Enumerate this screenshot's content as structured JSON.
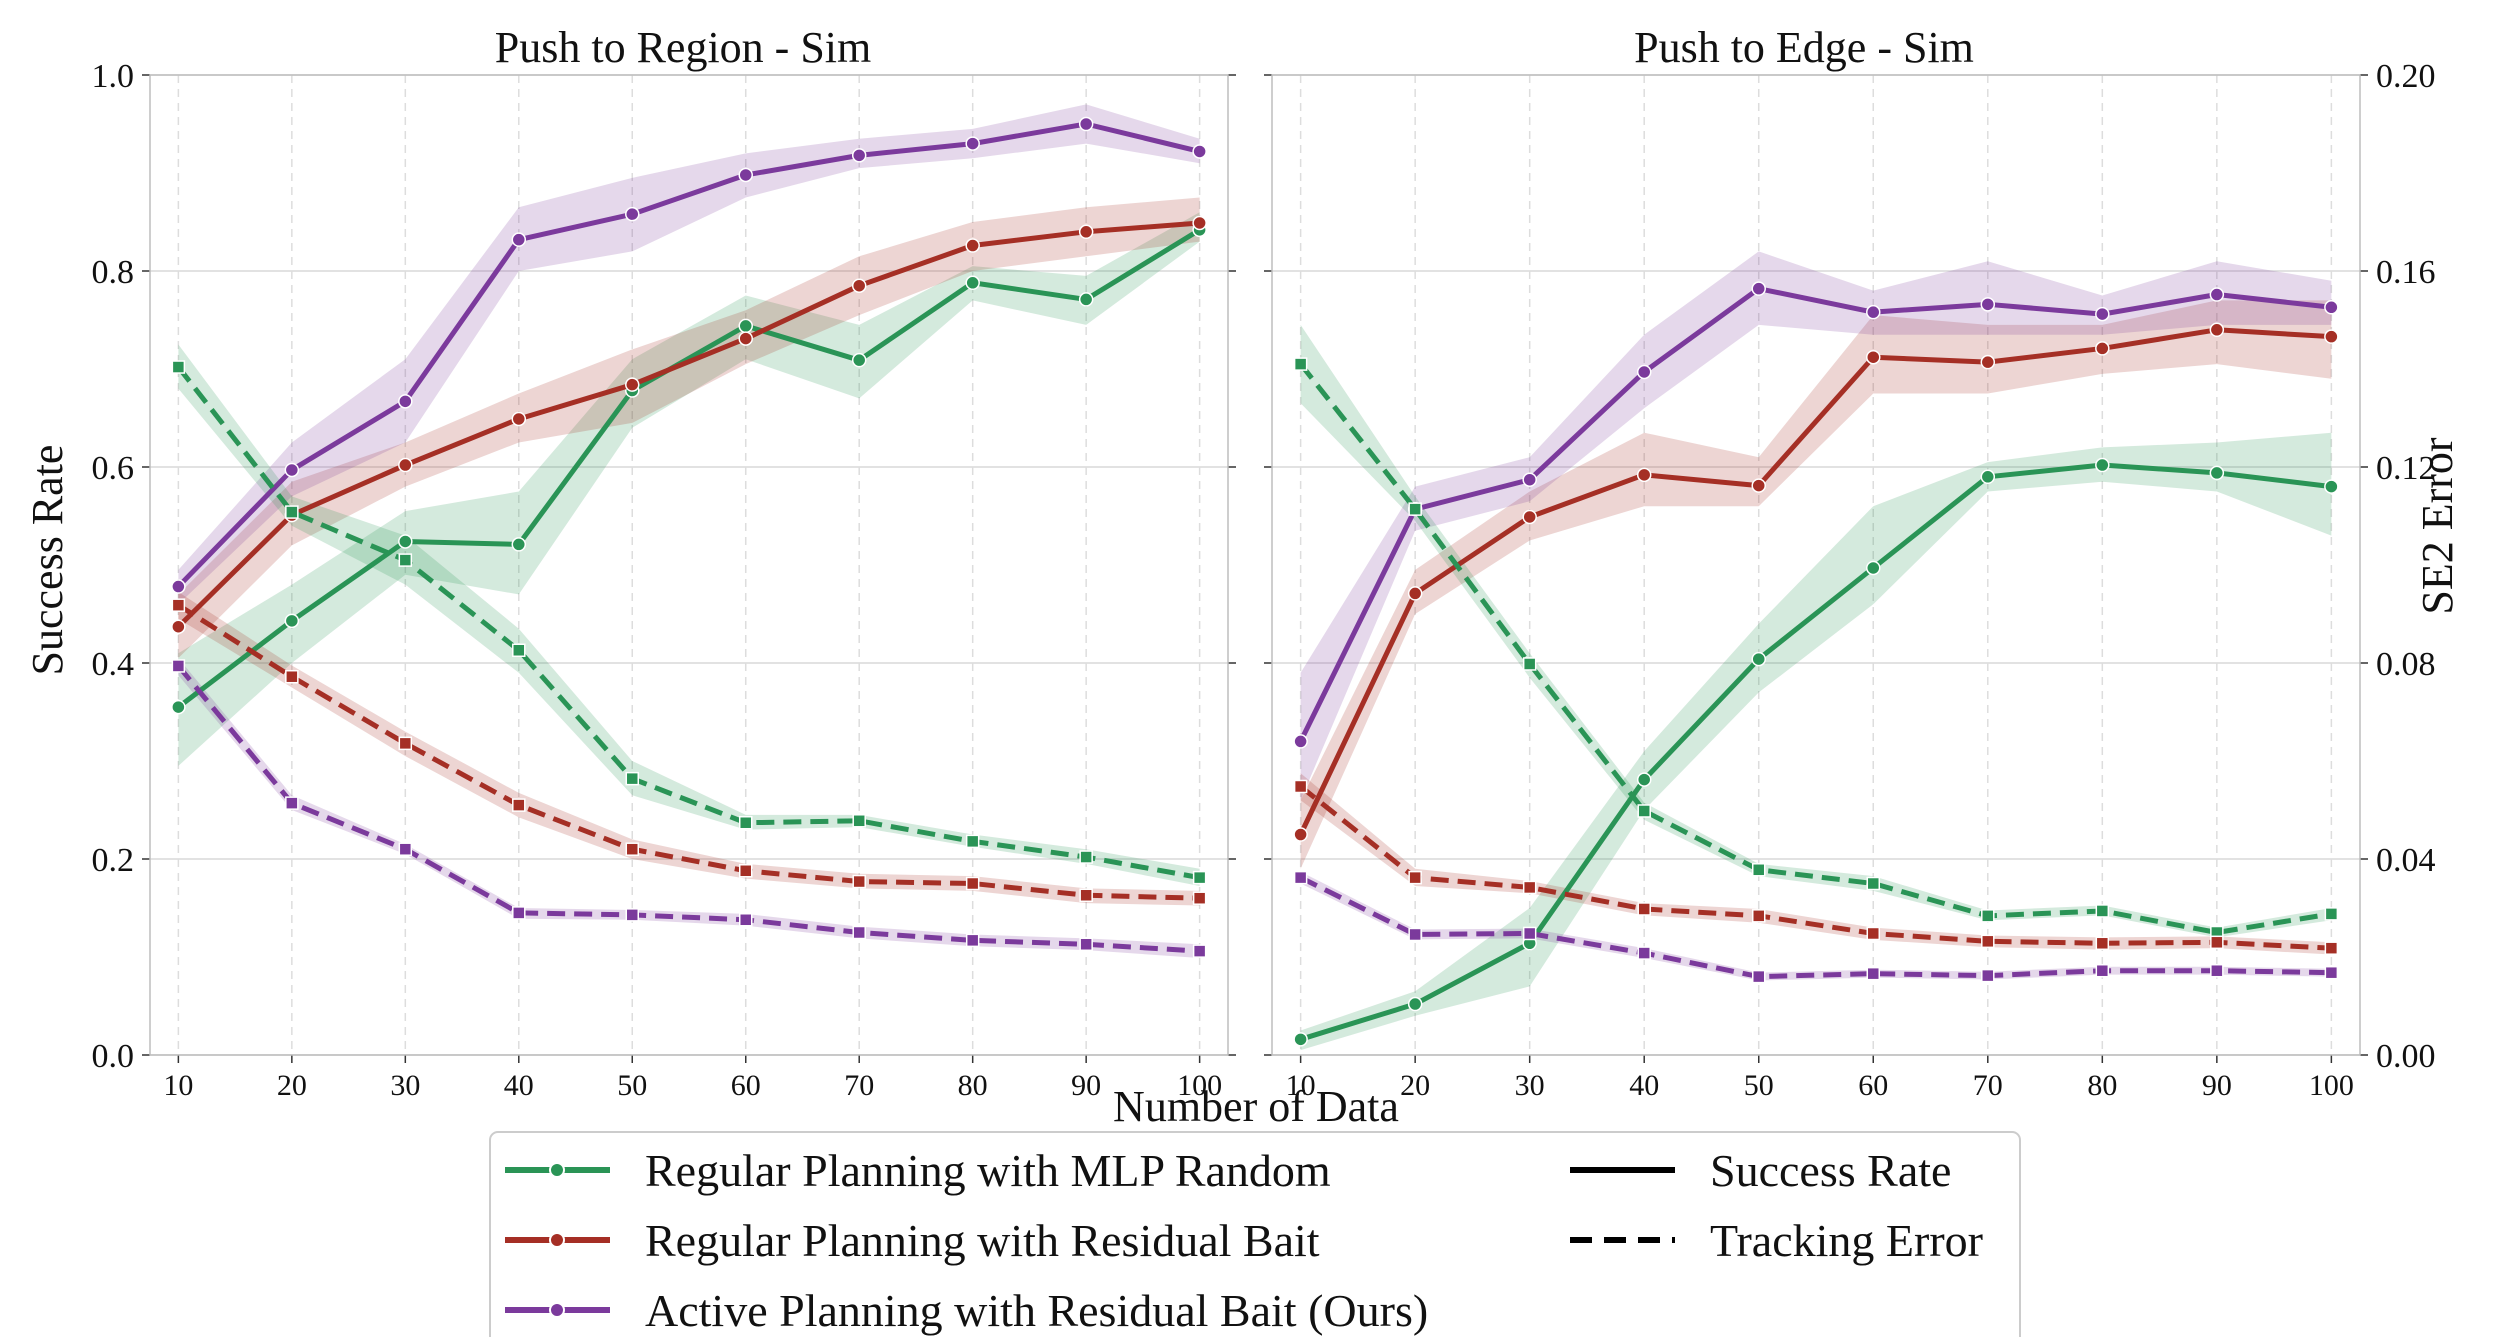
{
  "chart_data": [
    {
      "type": "line",
      "title": "Push to Region - Sim",
      "ylabel": "Success Rate",
      "xlabel": "Number of Data",
      "ylim": [
        0.0,
        1.0
      ],
      "y2lim": [
        0.0,
        0.2
      ],
      "x": [
        10,
        20,
        30,
        40,
        50,
        60,
        70,
        80,
        90,
        100
      ],
      "xticks": [
        "10",
        "20",
        "30",
        "40",
        "50",
        "60",
        "70",
        "80",
        "90",
        "100"
      ],
      "yticks": [
        "0.0",
        "0.2",
        "0.4",
        "0.6",
        "0.8",
        "1.0"
      ],
      "grid": true,
      "series": [
        {
          "name": "Regular Planning with MLP Random",
          "metric": "Success Rate",
          "axis": "left",
          "color": "#2a9456",
          "values": [
            0.355,
            0.443,
            0.524,
            0.521,
            0.678,
            0.744,
            0.709,
            0.788,
            0.771,
            0.842
          ],
          "lower": [
            0.295,
            0.4,
            0.49,
            0.47,
            0.64,
            0.71,
            0.67,
            0.77,
            0.745,
            0.83
          ],
          "upper": [
            0.41,
            0.48,
            0.555,
            0.575,
            0.71,
            0.775,
            0.745,
            0.805,
            0.795,
            0.86
          ]
        },
        {
          "name": "Regular Planning with Residual Bait",
          "metric": "Success Rate",
          "axis": "left",
          "color": "#a52f25",
          "values": [
            0.437,
            0.551,
            0.602,
            0.649,
            0.684,
            0.731,
            0.785,
            0.826,
            0.84,
            0.849
          ],
          "lower": [
            0.405,
            0.52,
            0.58,
            0.625,
            0.645,
            0.705,
            0.755,
            0.8,
            0.815,
            0.83
          ],
          "upper": [
            0.47,
            0.585,
            0.625,
            0.675,
            0.72,
            0.76,
            0.815,
            0.85,
            0.865,
            0.875
          ]
        },
        {
          "name": "Active Planning with Residual Bait (Ours)",
          "metric": "Success Rate",
          "axis": "left",
          "color": "#7b3a9c",
          "values": [
            0.478,
            0.597,
            0.667,
            0.832,
            0.858,
            0.898,
            0.918,
            0.93,
            0.95,
            0.922
          ],
          "lower": [
            0.46,
            0.57,
            0.625,
            0.8,
            0.82,
            0.875,
            0.905,
            0.915,
            0.93,
            0.91
          ],
          "upper": [
            0.495,
            0.625,
            0.71,
            0.865,
            0.895,
            0.92,
            0.935,
            0.945,
            0.97,
            0.935
          ]
        },
        {
          "name": "Regular Planning with MLP Random",
          "metric": "Tracking Error",
          "axis": "right",
          "color": "#2a9456",
          "values": [
            0.1404,
            0.1108,
            0.101,
            0.0826,
            0.0564,
            0.0474,
            0.0478,
            0.0436,
            0.0404,
            0.0362
          ],
          "lower": [
            0.136,
            0.108,
            0.096,
            0.078,
            0.053,
            0.046,
            0.0465,
            0.0425,
            0.039,
            0.0345
          ],
          "upper": [
            0.145,
            0.114,
            0.106,
            0.087,
            0.06,
            0.049,
            0.049,
            0.045,
            0.042,
            0.038
          ]
        },
        {
          "name": "Regular Planning with Residual Bait",
          "metric": "Tracking Error",
          "axis": "right",
          "color": "#a52f25",
          "values": [
            0.0918,
            0.0772,
            0.0636,
            0.051,
            0.042,
            0.0376,
            0.0354,
            0.035,
            0.0326,
            0.032
          ],
          "lower": [
            0.089,
            0.075,
            0.061,
            0.0485,
            0.04,
            0.036,
            0.034,
            0.0335,
            0.031,
            0.0305
          ],
          "upper": [
            0.0945,
            0.0795,
            0.066,
            0.0535,
            0.044,
            0.039,
            0.037,
            0.0365,
            0.034,
            0.0335
          ]
        },
        {
          "name": "Active Planning with Residual Bait (Ours)",
          "metric": "Tracking Error",
          "axis": "right",
          "color": "#7b3a9c",
          "values": [
            0.0794,
            0.0514,
            0.042,
            0.029,
            0.0286,
            0.0276,
            0.025,
            0.0234,
            0.0226,
            0.0212
          ],
          "lower": [
            0.0775,
            0.05,
            0.041,
            0.0278,
            0.0276,
            0.0264,
            0.0238,
            0.0222,
            0.0214,
            0.0198
          ],
          "upper": [
            0.081,
            0.053,
            0.043,
            0.03,
            0.0296,
            0.0288,
            0.0262,
            0.0246,
            0.0238,
            0.0226
          ]
        }
      ]
    },
    {
      "type": "line",
      "title": "Push to Edge - Sim",
      "ylabel": "SE2 Error",
      "xlabel": "Number of Data",
      "ylim": [
        0.0,
        1.0
      ],
      "y2lim": [
        0.0,
        0.2
      ],
      "x": [
        10,
        20,
        30,
        40,
        50,
        60,
        70,
        80,
        90,
        100
      ],
      "xticks": [
        "10",
        "20",
        "30",
        "40",
        "50",
        "60",
        "70",
        "80",
        "90",
        "100"
      ],
      "y2ticks": [
        "0.00",
        "0.04",
        "0.08",
        "0.12",
        "0.16",
        "0.20"
      ],
      "grid": true,
      "series": [
        {
          "name": "Regular Planning with MLP Random",
          "metric": "Success Rate",
          "axis": "left",
          "color": "#2a9456",
          "values": [
            0.016,
            0.052,
            0.114,
            0.281,
            0.404,
            0.497,
            0.59,
            0.602,
            0.594,
            0.58
          ],
          "lower": [
            0.005,
            0.04,
            0.07,
            0.25,
            0.37,
            0.46,
            0.575,
            0.585,
            0.575,
            0.53
          ],
          "upper": [
            0.025,
            0.065,
            0.15,
            0.31,
            0.44,
            0.56,
            0.605,
            0.62,
            0.625,
            0.635
          ]
        },
        {
          "name": "Regular Planning with Residual Bait",
          "metric": "Success Rate",
          "axis": "left",
          "color": "#a52f25",
          "values": [
            0.225,
            0.471,
            0.549,
            0.592,
            0.581,
            0.712,
            0.707,
            0.721,
            0.74,
            0.733
          ],
          "lower": [
            0.19,
            0.45,
            0.525,
            0.56,
            0.56,
            0.675,
            0.675,
            0.695,
            0.705,
            0.69
          ],
          "upper": [
            0.26,
            0.495,
            0.575,
            0.635,
            0.61,
            0.755,
            0.745,
            0.745,
            0.77,
            0.77
          ]
        },
        {
          "name": "Active Planning with Residual Bait (Ours)",
          "metric": "Success Rate",
          "axis": "left",
          "color": "#7b3a9c",
          "values": [
            0.32,
            0.557,
            0.587,
            0.697,
            0.782,
            0.758,
            0.766,
            0.756,
            0.776,
            0.763
          ],
          "lower": [
            0.26,
            0.535,
            0.565,
            0.66,
            0.745,
            0.735,
            0.735,
            0.735,
            0.745,
            0.745
          ],
          "upper": [
            0.39,
            0.58,
            0.61,
            0.735,
            0.82,
            0.78,
            0.81,
            0.775,
            0.81,
            0.79
          ]
        },
        {
          "name": "Regular Planning with MLP Random",
          "metric": "Tracking Error",
          "axis": "right",
          "color": "#2a9456",
          "values": [
            0.141,
            0.1114,
            0.0798,
            0.0498,
            0.0378,
            0.035,
            0.0284,
            0.0294,
            0.025,
            0.0288
          ],
          "lower": [
            0.133,
            0.109,
            0.077,
            0.048,
            0.0365,
            0.0335,
            0.0275,
            0.0285,
            0.024,
            0.0275
          ],
          "upper": [
            0.149,
            0.114,
            0.082,
            0.0515,
            0.039,
            0.0365,
            0.0295,
            0.0305,
            0.026,
            0.03
          ]
        },
        {
          "name": "Regular Planning with Residual Bait",
          "metric": "Tracking Error",
          "axis": "right",
          "color": "#a52f25",
          "values": [
            0.0548,
            0.0362,
            0.0342,
            0.0298,
            0.0284,
            0.0248,
            0.0232,
            0.0228,
            0.023,
            0.0218
          ],
          "lower": [
            0.052,
            0.0345,
            0.033,
            0.0285,
            0.027,
            0.0235,
            0.022,
            0.0215,
            0.0218,
            0.0205
          ],
          "upper": [
            0.0575,
            0.038,
            0.0355,
            0.031,
            0.0298,
            0.026,
            0.0244,
            0.024,
            0.0242,
            0.023
          ]
        },
        {
          "name": "Active Planning with Residual Bait (Ours)",
          "metric": "Tracking Error",
          "axis": "right",
          "color": "#7b3a9c",
          "values": [
            0.0362,
            0.0246,
            0.0248,
            0.0208,
            0.016,
            0.0166,
            0.0162,
            0.0172,
            0.0172,
            0.0168
          ],
          "lower": [
            0.035,
            0.0236,
            0.0238,
            0.0198,
            0.0152,
            0.0158,
            0.0154,
            0.0164,
            0.0164,
            0.016
          ],
          "upper": [
            0.0374,
            0.0256,
            0.0258,
            0.0218,
            0.0168,
            0.0174,
            0.017,
            0.018,
            0.018,
            0.0176
          ]
        }
      ]
    }
  ],
  "legend": {
    "methods": [
      {
        "label": "Regular Planning with MLP Random",
        "color": "#2a9456"
      },
      {
        "label": "Regular Planning with Residual Bait",
        "color": "#a52f25"
      },
      {
        "label": "Active Planning with Residual Bait (Ours)",
        "color": "#7b3a9c"
      }
    ],
    "styles": [
      {
        "label": "Success Rate",
        "dash": "solid"
      },
      {
        "label": "Tracking Error",
        "dash": "dashed"
      }
    ]
  }
}
